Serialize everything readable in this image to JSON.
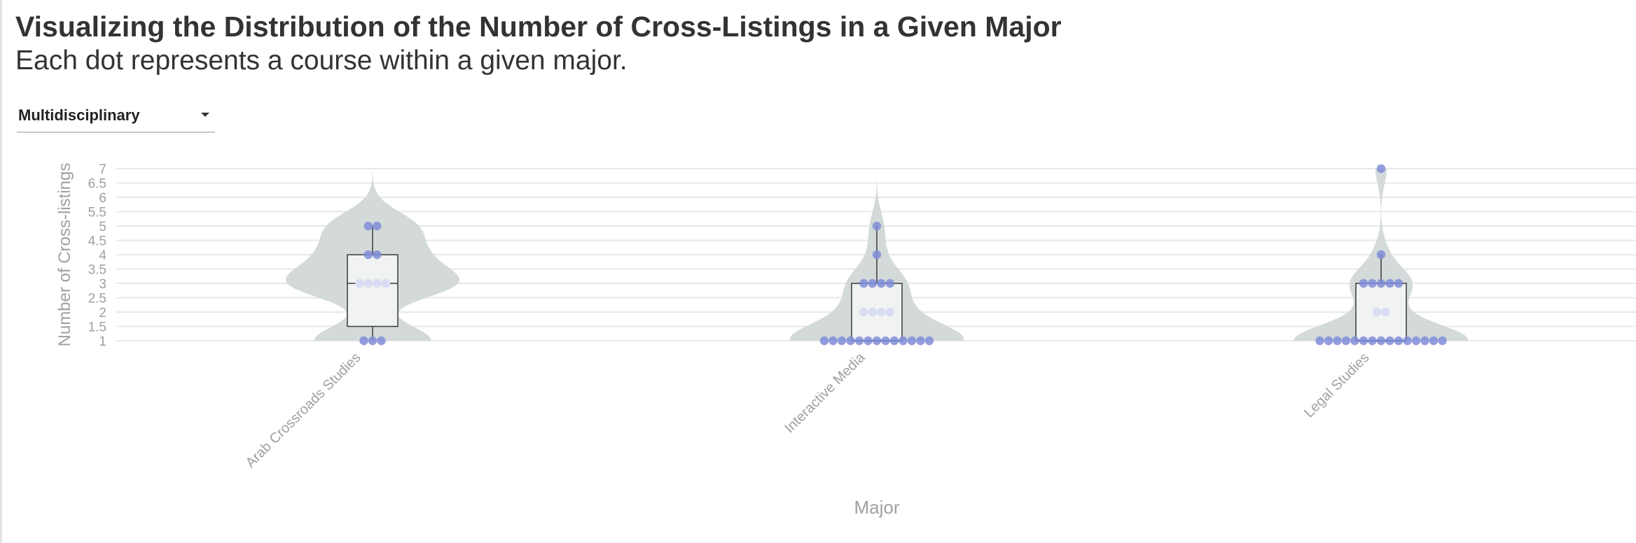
{
  "header": {
    "title": "Visualizing the Distribution of the Number of Cross-Listings in a Given Major",
    "subtitle": "Each dot represents a course within a given major."
  },
  "filter": {
    "selected": "Multidisciplinary",
    "icon": "caret-down-icon"
  },
  "colors": {
    "violin": "#d3dad9",
    "box_fill": "#f1f3f3",
    "box_stroke": "#3a3a3a",
    "dot": "#7f8dd8",
    "dot_light": "#d9ddf4",
    "grid": "#e8e8e8",
    "axis_text": "#a0a0a0"
  },
  "chart_data": {
    "type": "violin",
    "xlabel": "Major",
    "ylabel": "Number of Cross-listings",
    "ylim": [
      1,
      7
    ],
    "yticks": [
      "1",
      "1.5",
      "2",
      "2.5",
      "3",
      "3.5",
      "4",
      "4.5",
      "5",
      "5.5",
      "6",
      "6.5",
      "7"
    ],
    "grid": true,
    "categories": [
      "Arab Crossroads Studies",
      "Interactive Media",
      "Legal Studies"
    ],
    "series": [
      {
        "category": "Arab Crossroads Studies",
        "values": [
          1,
          1,
          1,
          3,
          3,
          3,
          3,
          4,
          4,
          5,
          5
        ],
        "box": {
          "min": 1,
          "q1": 1.5,
          "median": 3,
          "q3": 4,
          "max": 5
        }
      },
      {
        "category": "Interactive Media",
        "values": [
          1,
          1,
          1,
          1,
          1,
          1,
          1,
          1,
          1,
          1,
          1,
          1,
          1,
          2,
          2,
          2,
          2,
          3,
          3,
          3,
          3,
          4,
          5
        ],
        "box": {
          "min": 1,
          "q1": 1,
          "median": 1,
          "q3": 3,
          "max": 5
        }
      },
      {
        "category": "Legal Studies",
        "values": [
          1,
          1,
          1,
          1,
          1,
          1,
          1,
          1,
          1,
          1,
          1,
          1,
          1,
          1,
          1,
          2,
          2,
          3,
          3,
          3,
          3,
          3,
          4,
          7
        ],
        "box": {
          "min": 1,
          "q1": 1,
          "median": 1,
          "q3": 3,
          "max": 4
        }
      }
    ]
  }
}
